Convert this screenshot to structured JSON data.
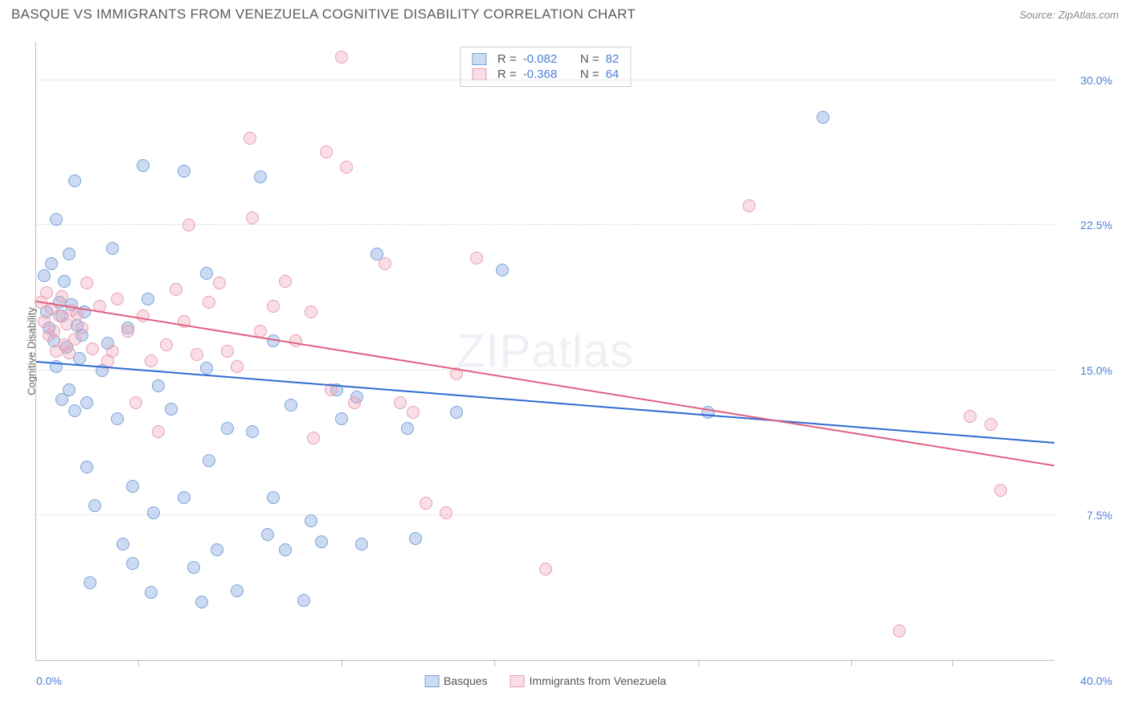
{
  "header": {
    "title": "BASQUE VS IMMIGRANTS FROM VENEZUELA COGNITIVE DISABILITY CORRELATION CHART",
    "source_prefix": "Source: ",
    "source_name": "ZipAtlas.com"
  },
  "watermark": {
    "part1": "ZIP",
    "part2": "atlas"
  },
  "y_axis": {
    "label": "Cognitive Disability",
    "min": 0.0,
    "max": 32.0,
    "ticks": [
      7.5,
      15.0,
      22.5,
      30.0
    ],
    "tick_labels": [
      "7.5%",
      "15.0%",
      "22.5%",
      "30.0%"
    ],
    "color": "#4a7fd8"
  },
  "x_axis": {
    "min": 0.0,
    "max": 40.0,
    "start_label": "0.0%",
    "end_label": "40.0%",
    "tick_positions": [
      4,
      12,
      18,
      26,
      32,
      36
    ],
    "color": "#4a7fd8"
  },
  "series": [
    {
      "name": "Basques",
      "fill": "rgba(120,160,220,0.38)",
      "stroke": "#7ba4d8",
      "line": "#2f6bd0",
      "r_value": "-0.082",
      "n_value": "82",
      "trend": {
        "y_at_xmin": 15.4,
        "y_at_xmax": 11.2
      },
      "points": [
        [
          0.3,
          19.9
        ],
        [
          0.4,
          18.0
        ],
        [
          0.5,
          17.2
        ],
        [
          0.6,
          20.5
        ],
        [
          0.7,
          16.5
        ],
        [
          0.8,
          22.8
        ],
        [
          0.8,
          15.2
        ],
        [
          0.9,
          18.5
        ],
        [
          1.0,
          13.5
        ],
        [
          1.0,
          17.8
        ],
        [
          1.1,
          19.6
        ],
        [
          1.2,
          16.2
        ],
        [
          1.3,
          21.0
        ],
        [
          1.3,
          14.0
        ],
        [
          1.4,
          18.4
        ],
        [
          1.5,
          24.8
        ],
        [
          1.5,
          12.9
        ],
        [
          1.6,
          17.3
        ],
        [
          1.7,
          15.6
        ],
        [
          1.8,
          16.8
        ],
        [
          1.9,
          18.0
        ],
        [
          2.0,
          13.3
        ],
        [
          2.0,
          10.0
        ],
        [
          2.1,
          4.0
        ],
        [
          2.3,
          8.0
        ],
        [
          2.6,
          15.0
        ],
        [
          2.8,
          16.4
        ],
        [
          3.0,
          21.3
        ],
        [
          3.2,
          12.5
        ],
        [
          3.4,
          6.0
        ],
        [
          3.6,
          17.2
        ],
        [
          3.8,
          9.0
        ],
        [
          3.8,
          5.0
        ],
        [
          4.2,
          25.6
        ],
        [
          4.4,
          18.7
        ],
        [
          4.5,
          3.5
        ],
        [
          4.6,
          7.6
        ],
        [
          4.8,
          14.2
        ],
        [
          5.3,
          13.0
        ],
        [
          5.8,
          25.3
        ],
        [
          5.8,
          8.4
        ],
        [
          6.2,
          4.8
        ],
        [
          6.5,
          3.0
        ],
        [
          6.7,
          20.0
        ],
        [
          6.7,
          15.1
        ],
        [
          6.8,
          10.3
        ],
        [
          7.1,
          5.7
        ],
        [
          7.5,
          12.0
        ],
        [
          7.9,
          3.6
        ],
        [
          8.5,
          11.8
        ],
        [
          8.8,
          25.0
        ],
        [
          9.1,
          6.5
        ],
        [
          9.3,
          8.4
        ],
        [
          9.3,
          16.5
        ],
        [
          9.8,
          5.7
        ],
        [
          10.0,
          13.2
        ],
        [
          10.5,
          3.1
        ],
        [
          10.8,
          7.2
        ],
        [
          11.2,
          6.1
        ],
        [
          11.8,
          14.0
        ],
        [
          12.0,
          12.5
        ],
        [
          12.6,
          13.6
        ],
        [
          12.8,
          6.0
        ],
        [
          13.4,
          21.0
        ],
        [
          14.6,
          12.0
        ],
        [
          14.9,
          6.3
        ],
        [
          16.5,
          12.8
        ],
        [
          18.3,
          20.2
        ],
        [
          26.4,
          12.8
        ],
        [
          30.9,
          28.1
        ]
      ]
    },
    {
      "name": "Immigrants from Venezuela",
      "fill": "rgba(240,160,180,0.35)",
      "stroke": "#e79fb5",
      "line": "#e0607f",
      "r_value": "-0.368",
      "n_value": "64",
      "trend": {
        "y_at_xmin": 18.5,
        "y_at_xmax": 10.0
      },
      "points": [
        [
          0.2,
          18.5
        ],
        [
          0.3,
          17.5
        ],
        [
          0.4,
          19.0
        ],
        [
          0.5,
          16.8
        ],
        [
          0.6,
          18.2
        ],
        [
          0.7,
          17.0
        ],
        [
          0.8,
          16.0
        ],
        [
          0.9,
          17.8
        ],
        [
          1.0,
          18.8
        ],
        [
          1.1,
          16.3
        ],
        [
          1.2,
          17.4
        ],
        [
          1.3,
          15.9
        ],
        [
          1.4,
          18.1
        ],
        [
          1.5,
          16.6
        ],
        [
          1.6,
          17.9
        ],
        [
          1.8,
          17.2
        ],
        [
          2.0,
          19.5
        ],
        [
          2.2,
          16.1
        ],
        [
          2.5,
          18.3
        ],
        [
          2.8,
          15.5
        ],
        [
          3.0,
          16.0
        ],
        [
          3.2,
          18.7
        ],
        [
          3.6,
          17.0
        ],
        [
          3.9,
          13.3
        ],
        [
          4.2,
          17.8
        ],
        [
          4.5,
          15.5
        ],
        [
          4.8,
          11.8
        ],
        [
          5.1,
          16.3
        ],
        [
          5.5,
          19.2
        ],
        [
          5.8,
          17.5
        ],
        [
          6.0,
          22.5
        ],
        [
          6.3,
          15.8
        ],
        [
          6.8,
          18.5
        ],
        [
          7.2,
          19.5
        ],
        [
          7.5,
          16.0
        ],
        [
          7.9,
          15.2
        ],
        [
          8.4,
          27.0
        ],
        [
          8.5,
          22.9
        ],
        [
          8.8,
          17.0
        ],
        [
          9.3,
          18.3
        ],
        [
          9.8,
          19.6
        ],
        [
          10.2,
          16.5
        ],
        [
          10.8,
          18.0
        ],
        [
          10.9,
          11.5
        ],
        [
          11.4,
          26.3
        ],
        [
          11.6,
          14.0
        ],
        [
          12.0,
          31.2
        ],
        [
          12.2,
          25.5
        ],
        [
          12.5,
          13.3
        ],
        [
          13.7,
          20.5
        ],
        [
          14.3,
          13.3
        ],
        [
          14.8,
          12.8
        ],
        [
          15.3,
          8.1
        ],
        [
          16.1,
          7.6
        ],
        [
          16.5,
          14.8
        ],
        [
          17.3,
          20.8
        ],
        [
          20.0,
          4.7
        ],
        [
          28.0,
          23.5
        ],
        [
          33.9,
          1.5
        ],
        [
          36.7,
          12.6
        ],
        [
          37.5,
          12.2
        ],
        [
          37.9,
          8.8
        ]
      ]
    }
  ],
  "legend_box": {
    "r_label": "R =",
    "n_label": "N ="
  },
  "style": {
    "background": "#ffffff",
    "grid_color": "#dddddd",
    "border_color": "#bbbbbb",
    "point_radius": 8
  }
}
